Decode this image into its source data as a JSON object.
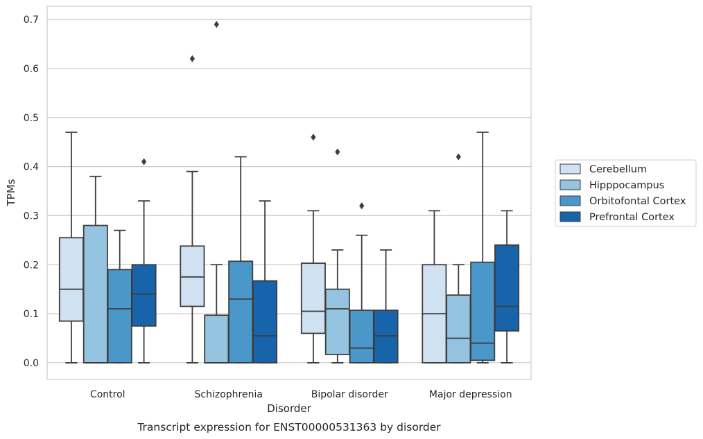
{
  "chart_data": {
    "type": "box",
    "title": "",
    "caption": "Transcript expression for ENST00000531363 by disorder",
    "xlabel": "Disorder",
    "ylabel": "TPMs",
    "ylim": [
      -0.034,
      0.727
    ],
    "yticks": [
      "0.0",
      "0.1",
      "0.2",
      "0.3",
      "0.4",
      "0.5",
      "0.6",
      "0.7"
    ],
    "grid": "horizontal",
    "legend_position": "right",
    "categories": [
      "Control",
      "Schizophrenia",
      "Bipolar disorder",
      "Major depression"
    ],
    "series": [
      {
        "name": "Cerebellum",
        "color": "#d0e1f2",
        "boxes": [
          {
            "whisker_low": 0.0,
            "q1": 0.085,
            "median": 0.15,
            "q3": 0.255,
            "whisker_high": 0.47,
            "outliers": []
          },
          {
            "whisker_low": 0.0,
            "q1": 0.115,
            "median": 0.175,
            "q3": 0.238,
            "whisker_high": 0.39,
            "outliers": [
              0.62
            ]
          },
          {
            "whisker_low": 0.0,
            "q1": 0.06,
            "median": 0.105,
            "q3": 0.203,
            "whisker_high": 0.31,
            "outliers": [
              0.46
            ]
          },
          {
            "whisker_low": 0.0,
            "q1": 0.0,
            "median": 0.1,
            "q3": 0.2,
            "whisker_high": 0.31,
            "outliers": []
          }
        ]
      },
      {
        "name": "Hipppocampus",
        "color": "#94c4df",
        "boxes": [
          {
            "whisker_low": 0.0,
            "q1": 0.0,
            "median": 0.0,
            "q3": 0.28,
            "whisker_high": 0.38,
            "outliers": []
          },
          {
            "whisker_low": 0.0,
            "q1": 0.0,
            "median": 0.0,
            "q3": 0.097,
            "whisker_high": 0.2,
            "outliers": [
              0.69
            ]
          },
          {
            "whisker_low": 0.0,
            "q1": 0.017,
            "median": 0.11,
            "q3": 0.15,
            "whisker_high": 0.23,
            "outliers": [
              0.43
            ]
          },
          {
            "whisker_low": 0.0,
            "q1": 0.0,
            "median": 0.05,
            "q3": 0.138,
            "whisker_high": 0.2,
            "outliers": [
              0.42
            ]
          }
        ]
      },
      {
        "name": "Orbitofontal Cortex",
        "color": "#4a98c9",
        "boxes": [
          {
            "whisker_low": 0.0,
            "q1": 0.0,
            "median": 0.11,
            "q3": 0.19,
            "whisker_high": 0.27,
            "outliers": []
          },
          {
            "whisker_low": 0.0,
            "q1": 0.0,
            "median": 0.13,
            "q3": 0.207,
            "whisker_high": 0.42,
            "outliers": []
          },
          {
            "whisker_low": 0.0,
            "q1": 0.0,
            "median": 0.03,
            "q3": 0.107,
            "whisker_high": 0.26,
            "outliers": [
              0.32
            ]
          },
          {
            "whisker_low": 0.0,
            "q1": 0.005,
            "median": 0.04,
            "q3": 0.205,
            "whisker_high": 0.47,
            "outliers": []
          }
        ]
      },
      {
        "name": "Prefrontal Cortex",
        "color": "#1764ab",
        "boxes": [
          {
            "whisker_low": 0.0,
            "q1": 0.075,
            "median": 0.14,
            "q3": 0.2,
            "whisker_high": 0.33,
            "outliers": [
              0.41
            ]
          },
          {
            "whisker_low": 0.0,
            "q1": 0.0,
            "median": 0.055,
            "q3": 0.167,
            "whisker_high": 0.33,
            "outliers": []
          },
          {
            "whisker_low": 0.0,
            "q1": 0.0,
            "median": 0.055,
            "q3": 0.107,
            "whisker_high": 0.23,
            "outliers": []
          },
          {
            "whisker_low": 0.0,
            "q1": 0.065,
            "median": 0.115,
            "q3": 0.24,
            "whisker_high": 0.31,
            "outliers": []
          }
        ]
      }
    ]
  }
}
